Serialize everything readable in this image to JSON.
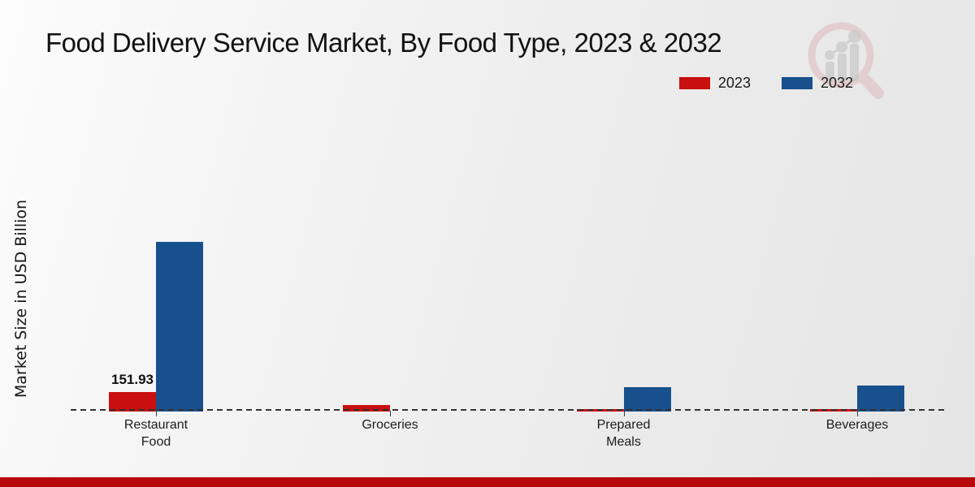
{
  "page": {
    "bottom_accent_color": "#b60808",
    "background_top": "#fcfcfc",
    "background_bottom": "#e6e6e6"
  },
  "chart_data": {
    "type": "bar",
    "title": "Food Delivery Service Market, By Food Type, 2023 & 2032",
    "ylabel": "Market Size in USD Billion",
    "xlabel": "",
    "categories": [
      "Restaurant\nFood",
      "Groceries",
      "Prepared\nMeals",
      "Beverages"
    ],
    "series": [
      {
        "name": "2023",
        "color": "#c90f0f",
        "values": [
          151.93,
          51,
          18,
          16
        ]
      },
      {
        "name": "2032",
        "color": "#17508c",
        "values": [
          1325,
          0,
          190,
          203
        ]
      }
    ],
    "annotations": [
      {
        "text": "151.93",
        "series_index": 0,
        "category_index": 0
      }
    ],
    "ylim": [
      0,
      1400
    ],
    "grid": false,
    "legend_position": "top-right",
    "zero_line": "dashed",
    "watermark_icon": "magnifier-bar-chart-logo"
  }
}
